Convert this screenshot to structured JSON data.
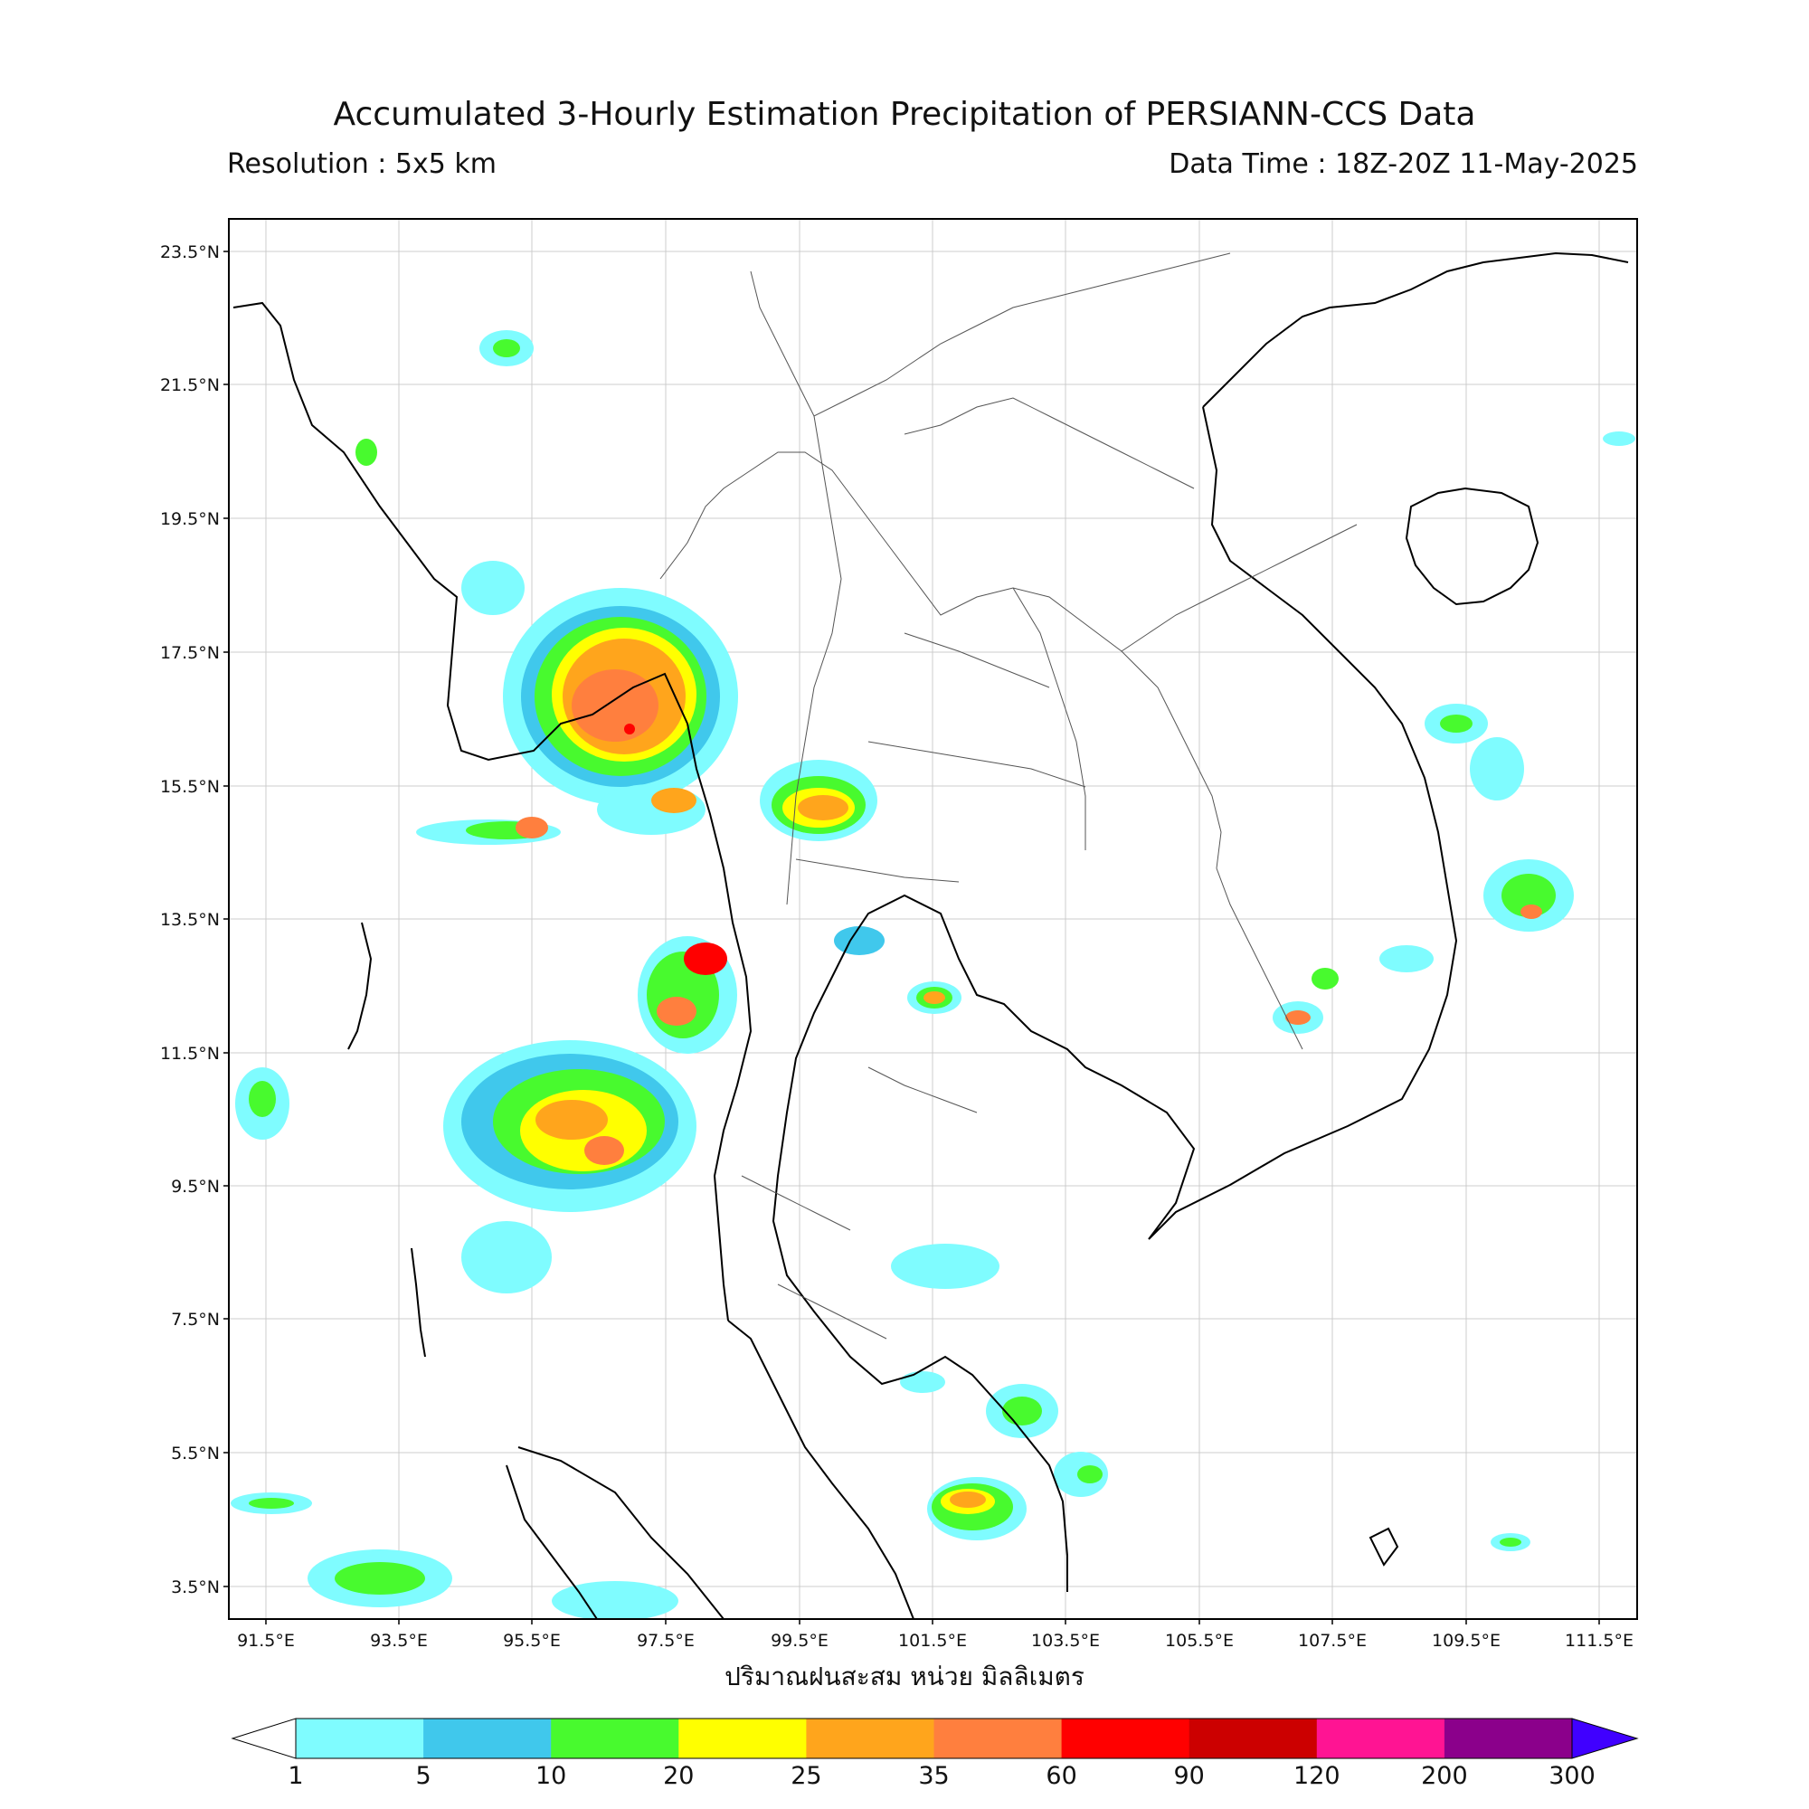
{
  "header": {
    "title": "Accumulated 3-Hourly Estimation Precipitation of PERSIANN-CCS Data",
    "resolution": "Resolution : 5x5 km",
    "data_time": "Data Time : 18Z-20Z 11-May-2025"
  },
  "axes": {
    "lat_labels": [
      "23.5°N",
      "21.5°N",
      "19.5°N",
      "17.5°N",
      "15.5°N",
      "13.5°N",
      "11.5°N",
      "9.5°N",
      "7.5°N",
      "5.5°N",
      "3.5°N"
    ],
    "lon_labels": [
      "91.5°E",
      "93.5°E",
      "95.5°E",
      "97.5°E",
      "99.5°E",
      "101.5°E",
      "103.5°E",
      "105.5°E",
      "107.5°E",
      "109.5°E",
      "111.5°E"
    ]
  },
  "colorbar": {
    "label": "ปริมาณฝนสะสม หน่วย มิลลิเมตร",
    "ticks": [
      "1",
      "5",
      "10",
      "20",
      "25",
      "35",
      "60",
      "90",
      "120",
      "200",
      "300"
    ],
    "colors": [
      "#7ffcff",
      "#40c8ec",
      "#48fa2e",
      "#ffff00",
      "#ffa51c",
      "#ff7f3e",
      "#ff0000",
      "#cc0000",
      "#ff1493",
      "#8b008b",
      "#4000ff"
    ]
  },
  "legend_icons": {
    "under": "white-triangle",
    "over": "blue-triangle"
  }
}
